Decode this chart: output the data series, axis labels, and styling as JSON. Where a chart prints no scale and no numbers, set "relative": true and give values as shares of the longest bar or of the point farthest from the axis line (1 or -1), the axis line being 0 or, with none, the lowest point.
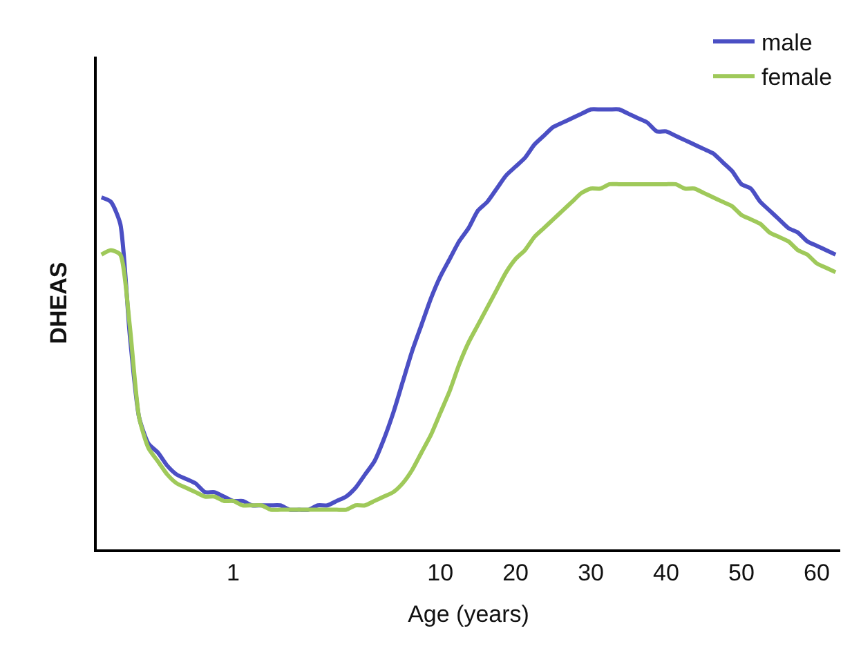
{
  "chart_data": {
    "type": "line",
    "relative": true,
    "xlabel": "Age (years)",
    "ylabel": "DHEAS",
    "categories": [
      null,
      null,
      null,
      null,
      null,
      null,
      null,
      null,
      null,
      null,
      null,
      null,
      null,
      null,
      "1",
      null,
      null,
      null,
      null,
      null,
      null,
      null,
      null,
      null,
      null,
      null,
      null,
      null,
      null,
      null,
      null,
      null,
      null,
      null,
      null,
      null,
      "10",
      null,
      null,
      null,
      null,
      null,
      null,
      null,
      "20",
      null,
      null,
      null,
      null,
      null,
      null,
      null,
      "30",
      null,
      null,
      null,
      null,
      null,
      null,
      null,
      "40",
      null,
      null,
      null,
      null,
      null,
      null,
      null,
      "50",
      null,
      null,
      null,
      null,
      null,
      null,
      null,
      "60",
      null,
      null
    ],
    "series": [
      {
        "name": "male",
        "color": "#4b4fc4",
        "values": [
          0.8,
          0.79,
          0.74,
          0.49,
          0.3,
          0.24,
          0.22,
          0.19,
          0.17,
          0.16,
          0.15,
          0.13,
          0.13,
          0.12,
          0.11,
          0.11,
          0.1,
          0.1,
          0.1,
          0.1,
          0.09,
          0.09,
          0.09,
          0.1,
          0.1,
          0.11,
          0.12,
          0.14,
          0.17,
          0.2,
          0.25,
          0.31,
          0.38,
          0.45,
          0.51,
          0.57,
          0.62,
          0.66,
          0.7,
          0.73,
          0.77,
          0.79,
          0.82,
          0.85,
          0.87,
          0.89,
          0.92,
          0.94,
          0.96,
          0.97,
          0.98,
          0.99,
          1.0,
          1.0,
          1.0,
          1.0,
          0.99,
          0.98,
          0.97,
          0.95,
          0.95,
          0.94,
          0.93,
          0.92,
          0.91,
          0.9,
          0.88,
          0.86,
          0.83,
          0.82,
          0.79,
          0.77,
          0.75,
          0.73,
          0.72,
          0.7,
          0.69,
          0.68,
          0.67
        ]
      },
      {
        "name": "female",
        "color": "#9fc95a",
        "values": [
          0.67,
          0.68,
          0.67,
          0.51,
          0.3,
          0.23,
          0.2,
          0.17,
          0.15,
          0.14,
          0.13,
          0.12,
          0.12,
          0.11,
          0.11,
          0.1,
          0.1,
          0.1,
          0.09,
          0.09,
          0.09,
          0.09,
          0.09,
          0.09,
          0.09,
          0.09,
          0.09,
          0.1,
          0.1,
          0.11,
          0.12,
          0.13,
          0.15,
          0.18,
          0.22,
          0.26,
          0.31,
          0.36,
          0.42,
          0.47,
          0.51,
          0.55,
          0.59,
          0.63,
          0.66,
          0.68,
          0.71,
          0.73,
          0.75,
          0.77,
          0.79,
          0.81,
          0.82,
          0.82,
          0.83,
          0.83,
          0.83,
          0.83,
          0.83,
          0.83,
          0.83,
          0.83,
          0.82,
          0.82,
          0.81,
          0.8,
          0.79,
          0.78,
          0.76,
          0.75,
          0.74,
          0.72,
          0.71,
          0.7,
          0.68,
          0.67,
          0.65,
          0.64,
          0.63
        ]
      }
    ],
    "legend": "top right",
    "marker": "none",
    "line_style": "solid"
  }
}
